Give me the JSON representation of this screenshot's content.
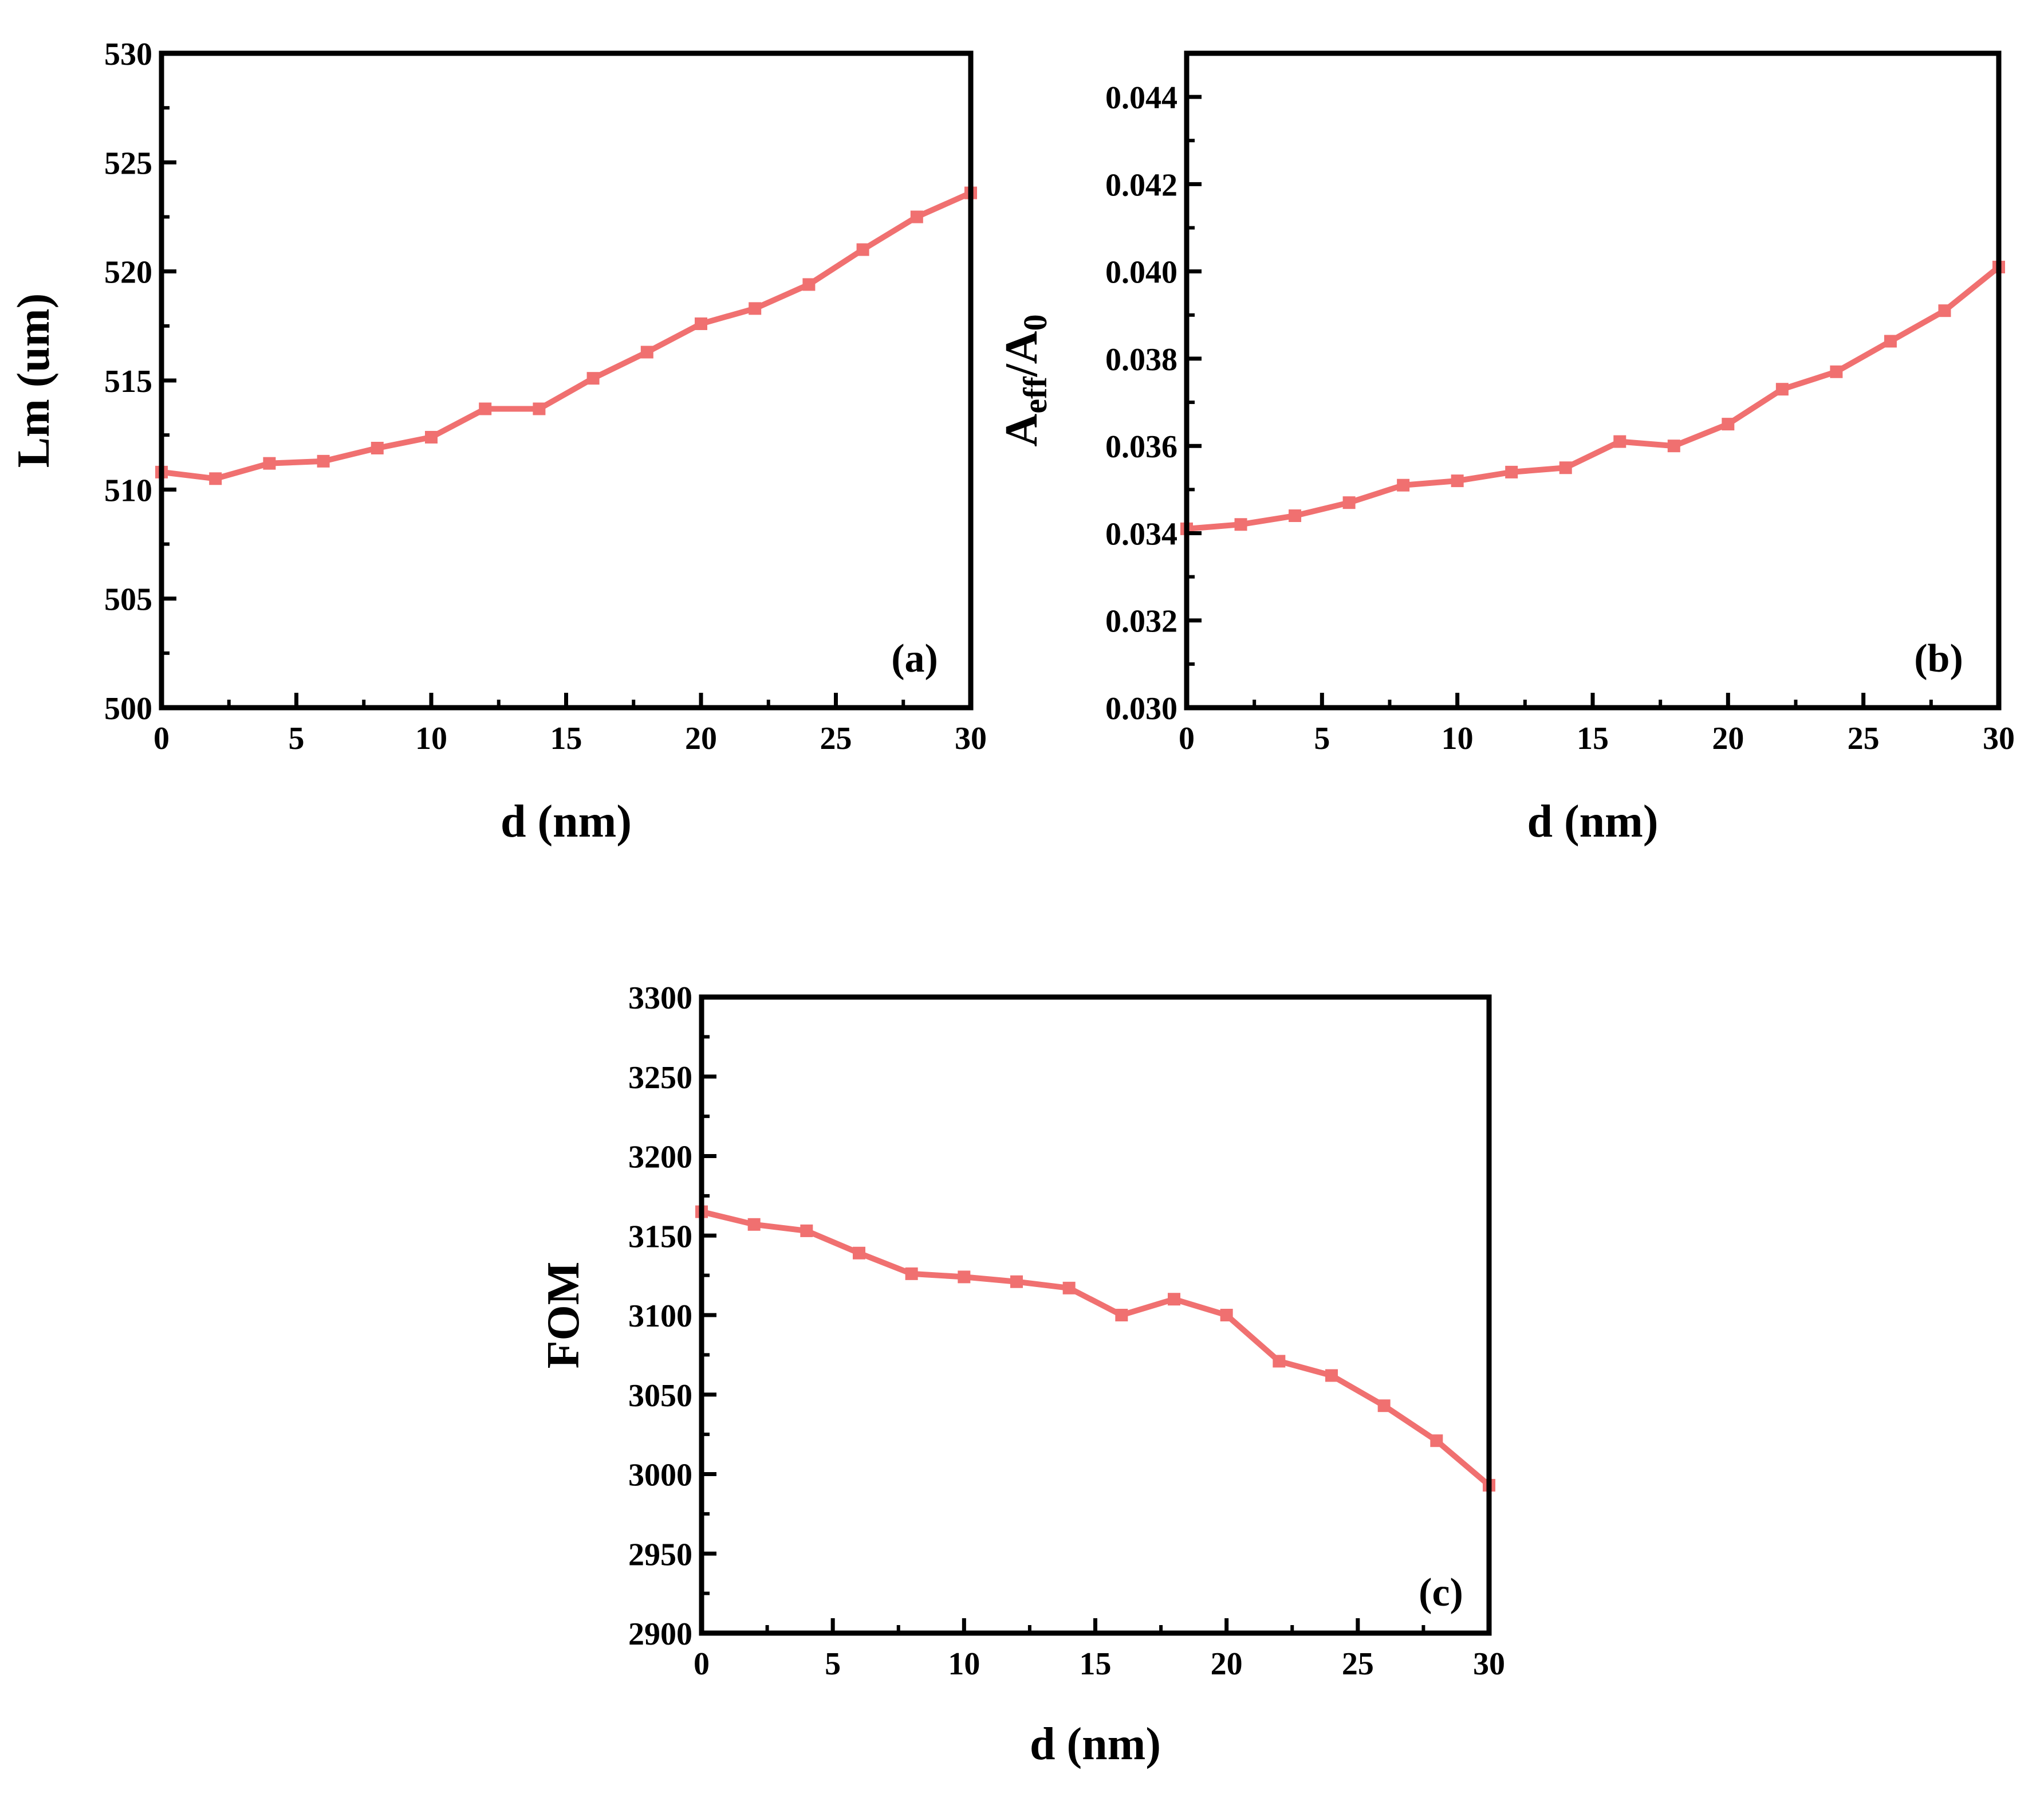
{
  "chart_data": [
    {
      "id": "a",
      "type": "line",
      "panel_label": "(a)",
      "xlabel": "d (nm)",
      "ylabel": "Lm (um)",
      "xlim": [
        0,
        30
      ],
      "ylim": [
        500,
        530
      ],
      "xticks": [
        0,
        5,
        10,
        15,
        20,
        25,
        30
      ],
      "yticks": [
        500,
        505,
        510,
        515,
        520,
        525,
        530
      ],
      "ytick_labels": [
        "500",
        "505",
        "510",
        "515",
        "520",
        "525",
        "530"
      ],
      "grid": false,
      "color": "#F07070",
      "x": [
        0,
        2,
        4,
        6,
        8,
        10,
        12,
        14,
        16,
        18,
        20,
        22,
        24,
        26,
        28,
        30
      ],
      "y": [
        510.8,
        510.5,
        511.2,
        511.3,
        511.9,
        512.4,
        513.7,
        513.7,
        515.1,
        516.3,
        517.6,
        518.3,
        519.4,
        521.0,
        522.5,
        523.6
      ]
    },
    {
      "id": "b",
      "type": "line",
      "panel_label": "(b)",
      "xlabel": "d (nm)",
      "ylabel_main": "A",
      "ylabel_sub1": "eff",
      "ylabel_mid": "/A",
      "ylabel_sub2": "0",
      "xlim": [
        0,
        30
      ],
      "ylim": [
        0.03,
        0.045
      ],
      "xticks": [
        0,
        5,
        10,
        15,
        20,
        25,
        30
      ],
      "yticks": [
        0.03,
        0.032,
        0.034,
        0.036,
        0.038,
        0.04,
        0.042,
        0.044
      ],
      "ytick_labels": [
        "0.030",
        "0.032",
        "0.034",
        "0.036",
        "0.038",
        "0.040",
        "0.042",
        "0.044"
      ],
      "grid": false,
      "color": "#F07070",
      "x": [
        0,
        2,
        4,
        6,
        8,
        10,
        12,
        14,
        16,
        18,
        20,
        22,
        24,
        26,
        28,
        30
      ],
      "y": [
        0.0341,
        0.0342,
        0.0344,
        0.0347,
        0.0351,
        0.0352,
        0.0354,
        0.0355,
        0.0361,
        0.036,
        0.0365,
        0.0373,
        0.0377,
        0.0384,
        0.0391,
        0.0401
      ]
    },
    {
      "id": "c",
      "type": "line",
      "panel_label": "(c)",
      "xlabel": "d (nm)",
      "ylabel": "FOM",
      "xlim": [
        0,
        30
      ],
      "ylim": [
        2900,
        3300
      ],
      "xticks": [
        0,
        5,
        10,
        15,
        20,
        25,
        30
      ],
      "yticks": [
        2900,
        2950,
        3000,
        3050,
        3100,
        3150,
        3200,
        3250,
        3300
      ],
      "ytick_labels": [
        "2900",
        "2950",
        "3000",
        "3050",
        "3100",
        "3150",
        "3200",
        "3250",
        "3300"
      ],
      "grid": false,
      "color": "#F07070",
      "x": [
        0,
        2,
        4,
        6,
        8,
        10,
        12,
        14,
        16,
        18,
        20,
        22,
        24,
        26,
        28,
        30
      ],
      "y": [
        3165,
        3157,
        3153,
        3139,
        3126,
        3124,
        3121,
        3117,
        3100,
        3110,
        3100,
        3071,
        3062,
        3043,
        3021,
        2993
      ]
    }
  ]
}
